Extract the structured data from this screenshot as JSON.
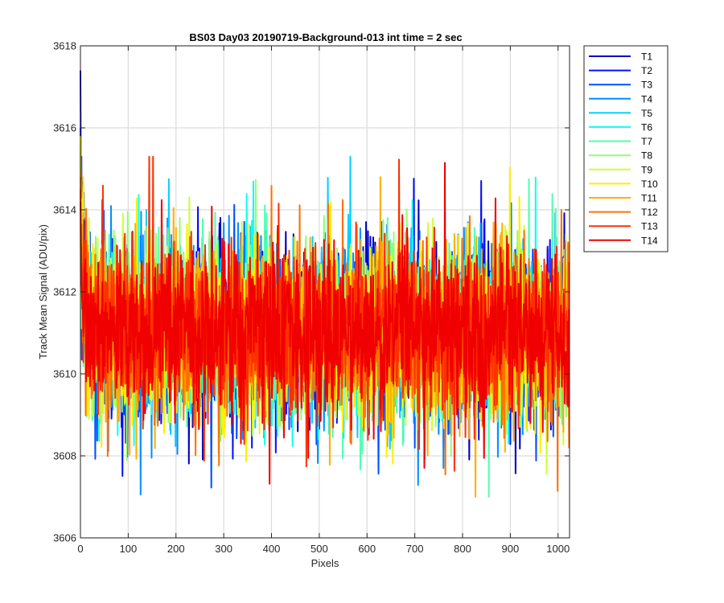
{
  "chart_data": {
    "type": "line",
    "title": "BS03 Day03 20190719-Background-013 int time = 2 sec",
    "xlabel": "Pixels",
    "ylabel": "Track Mean Signal (ADU/pix)",
    "xlim": [
      0,
      1024
    ],
    "ylim": [
      3606,
      3618
    ],
    "xticks": [
      0,
      100,
      200,
      300,
      400,
      500,
      600,
      700,
      800,
      900,
      1000
    ],
    "yticks": [
      3606,
      3608,
      3610,
      3612,
      3614,
      3616,
      3618
    ],
    "grid": true,
    "legend_position": "outside-right",
    "n_points": 1024,
    "series_mean": 3611.0,
    "noise_band": [
      3608.0,
      3614.5
    ],
    "series": [
      {
        "name": "T1",
        "color": "#0000bf",
        "start_value": 3617.4
      },
      {
        "name": "T2",
        "color": "#0010ff",
        "start_value": 3616.0
      },
      {
        "name": "T3",
        "color": "#0050ff",
        "start_value": 3615.5
      },
      {
        "name": "T4",
        "color": "#0090ff",
        "start_value": 3615.2
      },
      {
        "name": "T5",
        "color": "#00cfff",
        "start_value": 3615.0
      },
      {
        "name": "T6",
        "color": "#10ffef",
        "start_value": 3614.8
      },
      {
        "name": "T7",
        "color": "#50ffaf",
        "start_value": 3614.6
      },
      {
        "name": "T8",
        "color": "#8fff70",
        "start_value": 3614.5
      },
      {
        "name": "T9",
        "color": "#cfff30",
        "start_value": 3614.6
      },
      {
        "name": "T10",
        "color": "#ffef00",
        "start_value": 3615.8
      },
      {
        "name": "T11",
        "color": "#ffaf00",
        "start_value": 3615.0
      },
      {
        "name": "T12",
        "color": "#ff7000",
        "start_value": 3614.8
      },
      {
        "name": "T13",
        "color": "#ff3000",
        "start_value": 3614.5
      },
      {
        "name": "T14",
        "color": "#f00000",
        "start_value": 3614.2
      }
    ]
  }
}
